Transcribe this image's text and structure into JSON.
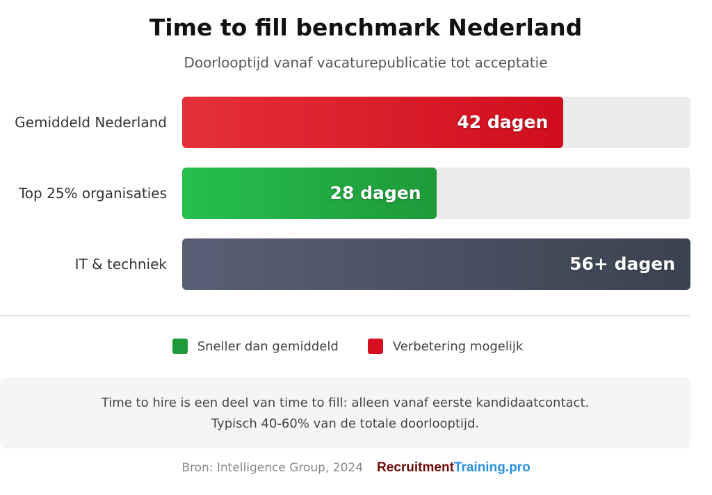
{
  "chart_data": {
    "type": "bar",
    "orientation": "horizontal",
    "title": "Time to fill benchmark Nederland",
    "subtitle": "Doorlooptijd vanaf vacaturepublicatie tot acceptatie",
    "xlim": [
      0,
      56
    ],
    "categories": [
      "Gemiddeld Nederland",
      "Top 25% organisaties",
      "IT & techniek"
    ],
    "values": [
      42,
      28,
      56
    ],
    "value_labels": [
      "42 dagen",
      "28 dagen",
      "56+ dagen"
    ],
    "colors": [
      [
        "#e5303b",
        "#d00d1e"
      ],
      [
        "#26bf4d",
        "#1f9a3a"
      ],
      [
        "#596075",
        "#3b4250"
      ]
    ],
    "legend": [
      {
        "label": "Sneller dan gemiddeld",
        "color": "#1f9a3a"
      },
      {
        "label": "Verbetering mogelijk",
        "color": "#d50f1f"
      }
    ]
  },
  "note": {
    "line1": "Time to hire is een deel van time to fill: alleen vanaf eerste kandidaatcontact.",
    "line2": "Typisch 40-60% van de totale doorlooptijd."
  },
  "footer": {
    "source": "Bron: Intelligence Group, 2024",
    "logo_part1": "Recruitment",
    "logo_part2": "Training.pro"
  }
}
